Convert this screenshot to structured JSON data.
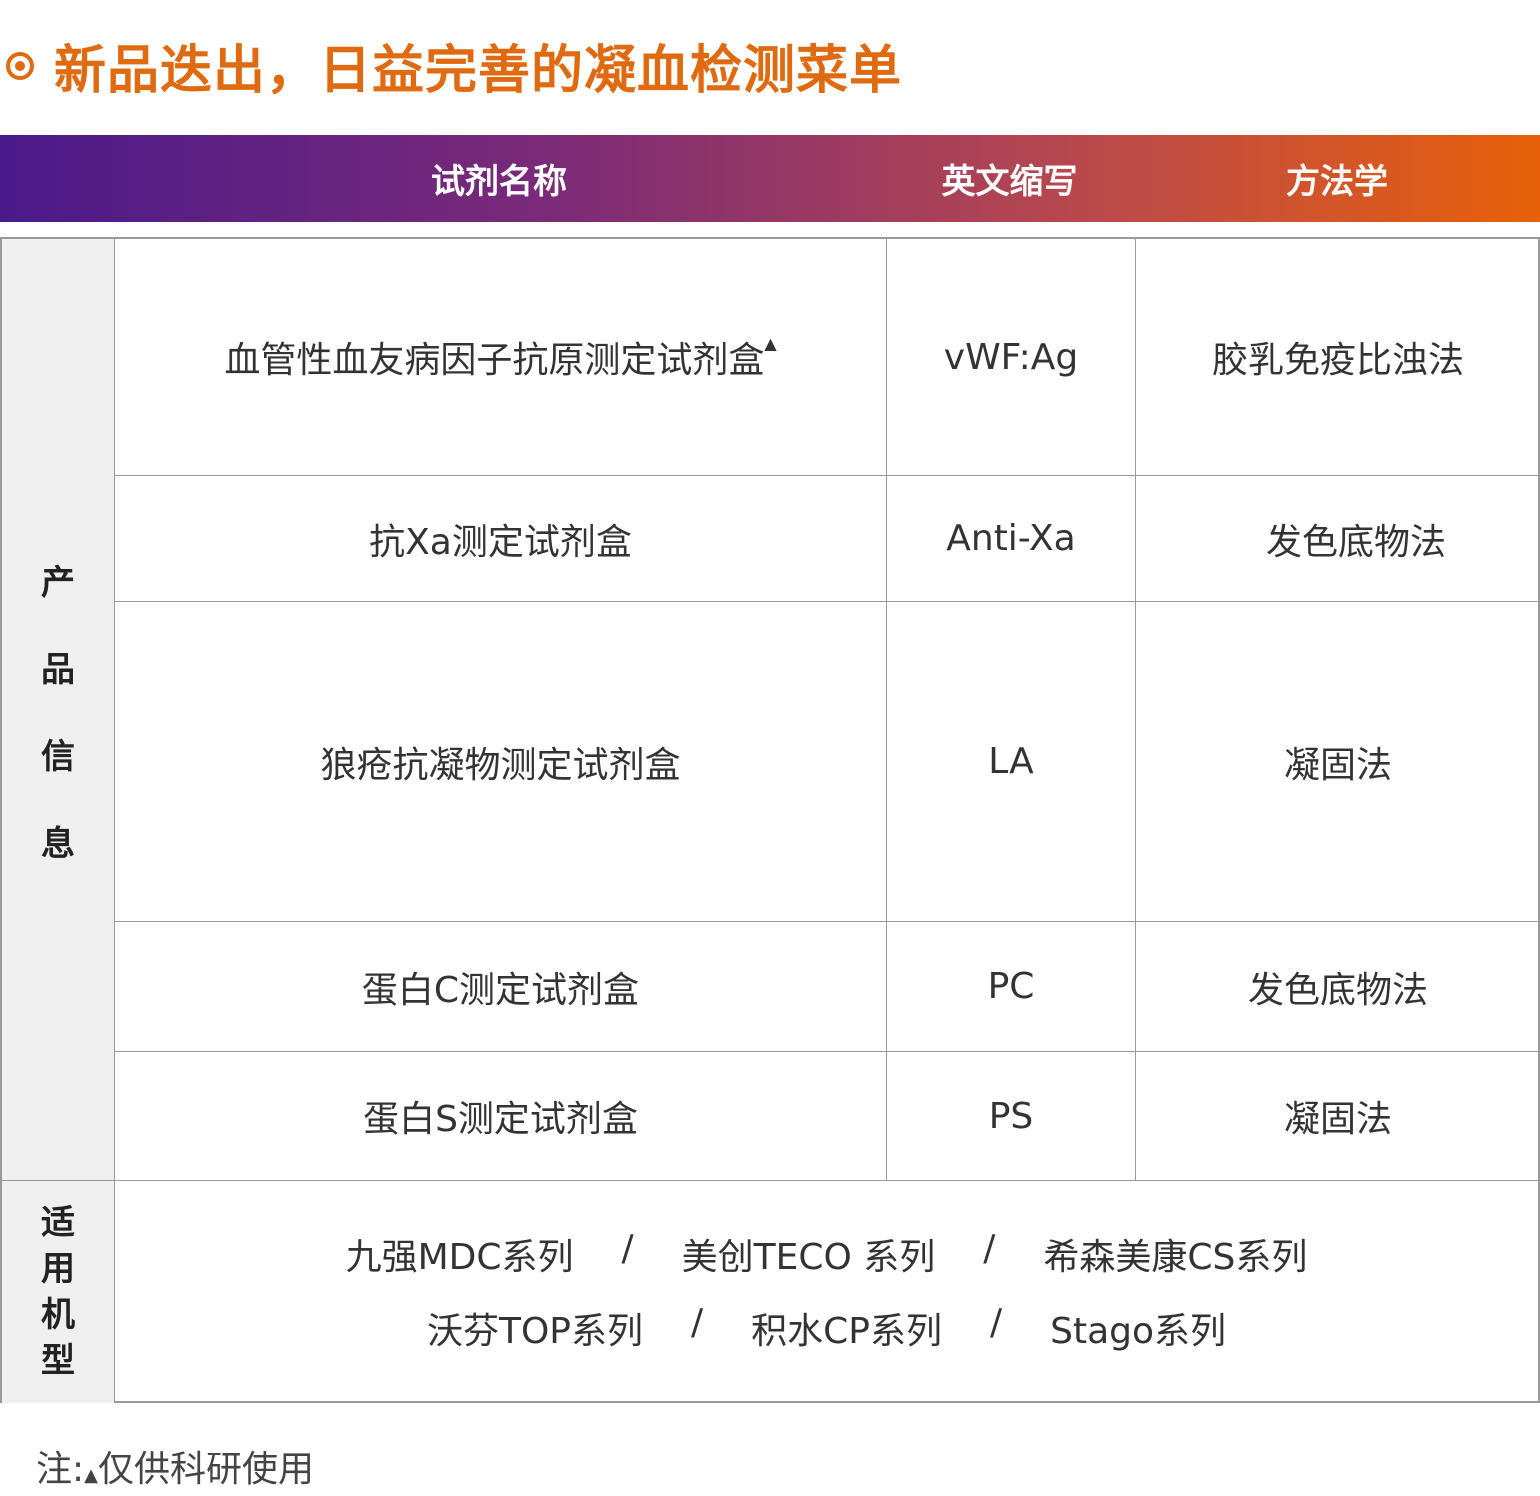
{
  "title": "新品迭出，日益完善的凝血检测菜单",
  "colors": {
    "accent": "#e06a10",
    "gradient_start": "#4a1a8a",
    "gradient_end": "#e8600a"
  },
  "header": {
    "name": "试剂名称",
    "abbr": "英文缩写",
    "method": "方法学"
  },
  "side_product": [
    "产",
    "品",
    "信",
    "息"
  ],
  "side_compat": [
    "适",
    "用",
    "机",
    "型"
  ],
  "rows": [
    {
      "name": "血管性血友病因子抗原测定试剂盒",
      "mark": "▲",
      "abbr": "vWF:Ag",
      "method": "胶乳免疫比浊法"
    },
    {
      "name": "抗Xa测定试剂盒",
      "abbr": "Anti-Xa",
      "method": "发色底物法"
    },
    {
      "name": "狼疮抗凝物测定试剂盒",
      "abbr": "LA",
      "method": "凝固法"
    },
    {
      "name": "蛋白C测定试剂盒",
      "abbr": "PC",
      "method": "发色底物法"
    },
    {
      "name": "蛋白S测定试剂盒",
      "abbr": "PS",
      "method": "凝固法"
    }
  ],
  "compat_lines": [
    [
      "九强MDC系列",
      "/",
      "美创TECO 系列",
      "/",
      "希森美康CS系列"
    ],
    [
      "沃芬TOP系列",
      "/",
      "积水CP系列",
      "/",
      "Stago系列"
    ]
  ],
  "note": {
    "prefix": "注:",
    "mark": "▲",
    "text": "仅供科研使用"
  }
}
